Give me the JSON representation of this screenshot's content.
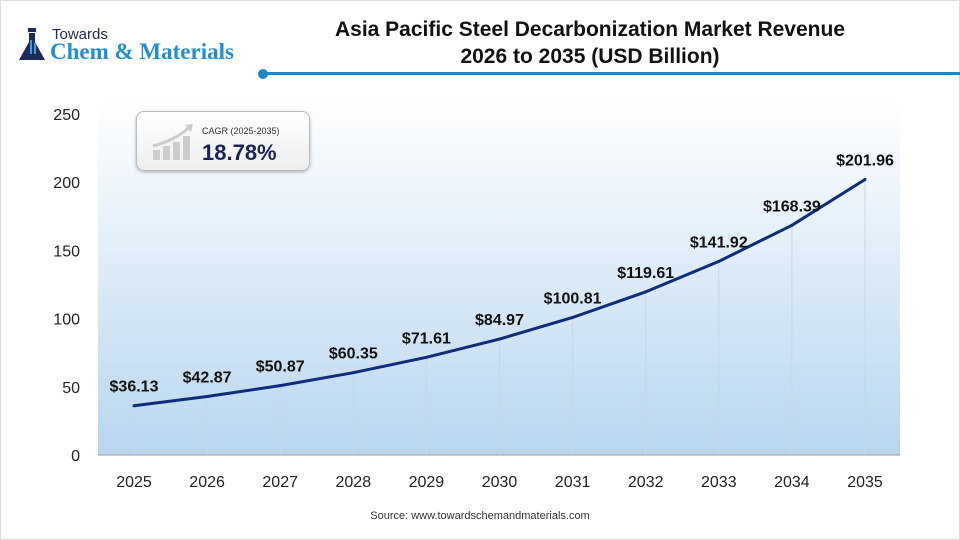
{
  "logo": {
    "line1": "Towards",
    "line2": "Chem & Materials"
  },
  "title": {
    "line1": "Asia Pacific Steel Decarbonization Market Revenue",
    "line2": "2026 to 2035 (USD Billion)"
  },
  "cagr": {
    "label": "CAGR (2025-2035)",
    "value": "18.78%"
  },
  "source": "Source: www.towardschemandmaterials.com",
  "colors": {
    "line": "#0d2d7a",
    "accent": "#1b86c8",
    "area_bottom": "#b9d6ee"
  },
  "chart_data": {
    "type": "line",
    "title": "Asia Pacific Steel Decarbonization Market Revenue 2026 to 2035 (USD Billion)",
    "categories": [
      "2025",
      "2026",
      "2027",
      "2028",
      "2029",
      "2030",
      "2031",
      "2032",
      "2033",
      "2034",
      "2035"
    ],
    "values": [
      36.13,
      42.87,
      50.87,
      60.35,
      71.61,
      84.97,
      100.81,
      119.61,
      141.92,
      168.39,
      201.96
    ],
    "data_labels": [
      "$36.13",
      "$42.87",
      "$50.87",
      "$60.35",
      "$71.61",
      "$84.97",
      "$100.81",
      "$119.61",
      "$141.92",
      "$168.39",
      "$201.96"
    ],
    "yticks": [
      "0",
      "50",
      "100",
      "150",
      "200",
      "250"
    ],
    "ylim": [
      0,
      250
    ],
    "grid": "vertical drop lines",
    "legend": "none"
  }
}
